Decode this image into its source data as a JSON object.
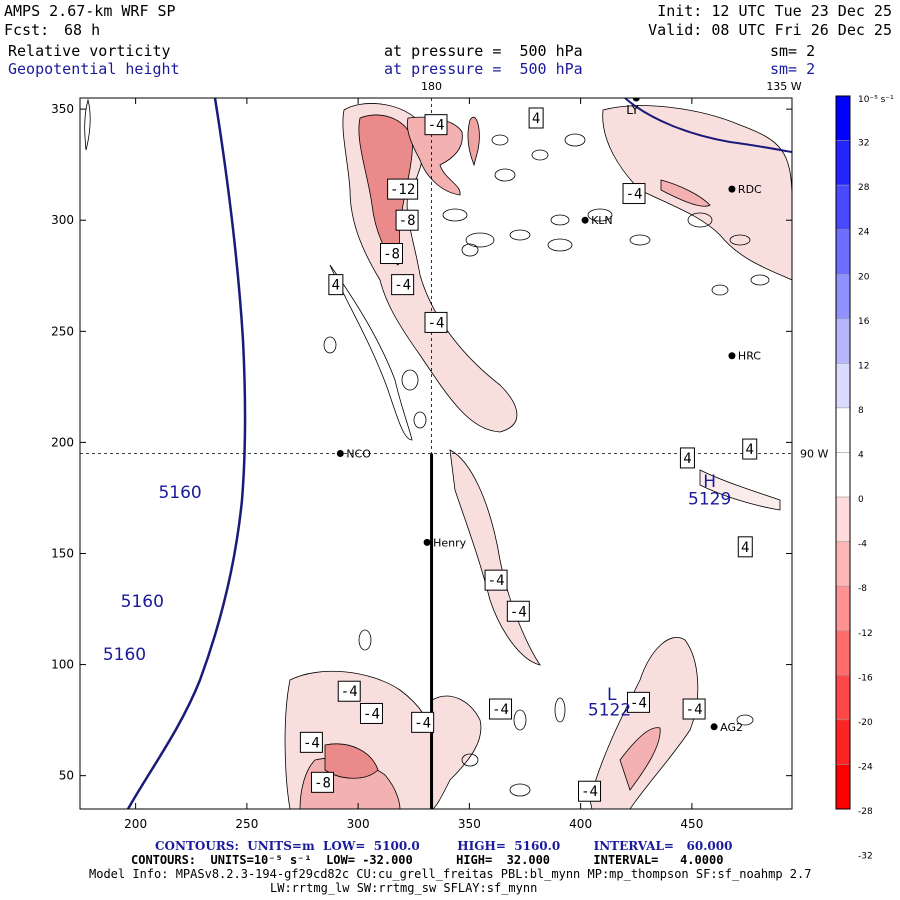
{
  "header": {
    "model": "AMPS 2.67-km WRF SP",
    "fcst_label": "Fcst:",
    "fcst_value": "68 h",
    "init": "Init: 12 UTC Tue 23 Dec 25",
    "valid": "Valid: 08 UTC Fri 26 Dec 25",
    "field1": "Relative vorticity",
    "field1_level": "at pressure =  500 hPa",
    "field1_smooth": "sm= 2",
    "field2": "Geopotential height",
    "field2_level": "at pressure =  500 hPa",
    "field2_smooth": "sm= 2",
    "lon_labels": [
      "180",
      "135 W",
      "90 W"
    ]
  },
  "colorbar": {
    "units": "10⁻⁵ s⁻¹",
    "ticks": [
      "32",
      "28",
      "24",
      "20",
      "16",
      "12",
      "8",
      "4",
      "0",
      "-4",
      "-8",
      "-12",
      "-16",
      "-20",
      "-24",
      "-28",
      "-32"
    ],
    "positive_color": "#0000ff",
    "negative_color": "#ff0000"
  },
  "chart_data": {
    "type": "contour",
    "xlim": [
      175,
      495
    ],
    "ylim": [
      35,
      355
    ],
    "x_ticks": [
      200,
      250,
      300,
      350,
      400,
      450
    ],
    "y_ticks": [
      50,
      100,
      150,
      200,
      250,
      300,
      350
    ],
    "height_contour_labels": [
      {
        "text": "5160",
        "x": 220,
        "y": 175
      },
      {
        "text": "5160",
        "x": 203,
        "y": 126
      },
      {
        "text": "5160",
        "x": 195,
        "y": 102
      },
      {
        "text": "5129",
        "x": 458,
        "y": 172
      },
      {
        "text": "5122",
        "x": 413,
        "y": 77
      }
    ],
    "pressure_centers": [
      {
        "label": "H",
        "x": 458,
        "y": 180
      },
      {
        "label": "L",
        "x": 414,
        "y": 84
      }
    ],
    "vorticity_labels": [
      {
        "text": "-4",
        "x": 335,
        "y": 343
      },
      {
        "text": "4",
        "x": 380,
        "y": 346
      },
      {
        "text": "-12",
        "x": 320,
        "y": 314
      },
      {
        "text": "-8",
        "x": 322,
        "y": 300
      },
      {
        "text": "-8",
        "x": 315,
        "y": 285
      },
      {
        "text": "4",
        "x": 290,
        "y": 271
      },
      {
        "text": "-4",
        "x": 320,
        "y": 271
      },
      {
        "text": "-4",
        "x": 335,
        "y": 254
      },
      {
        "text": "-4",
        "x": 424,
        "y": 312
      },
      {
        "text": "4",
        "x": 448,
        "y": 193
      },
      {
        "text": "4",
        "x": 476,
        "y": 197
      },
      {
        "text": "4",
        "x": 474,
        "y": 153
      },
      {
        "text": "-4",
        "x": 362,
        "y": 138
      },
      {
        "text": "-4",
        "x": 372,
        "y": 124
      },
      {
        "text": "-4",
        "x": 296,
        "y": 88
      },
      {
        "text": "-4",
        "x": 306,
        "y": 78
      },
      {
        "text": "-4",
        "x": 329,
        "y": 74
      },
      {
        "text": "-4",
        "x": 364,
        "y": 80
      },
      {
        "text": "-4",
        "x": 426,
        "y": 83
      },
      {
        "text": "-4",
        "x": 451,
        "y": 80
      },
      {
        "text": "-4",
        "x": 279,
        "y": 65
      },
      {
        "text": "-8",
        "x": 284,
        "y": 47
      },
      {
        "text": "-4",
        "x": 404,
        "y": 43
      }
    ],
    "stations": [
      {
        "name": "NCO",
        "x": 292,
        "y": 195
      },
      {
        "name": "Henry",
        "x": 331,
        "y": 155
      },
      {
        "name": "KLN",
        "x": 402,
        "y": 300
      },
      {
        "name": "RDC",
        "x": 468,
        "y": 314
      },
      {
        "name": "HRC",
        "x": 468,
        "y": 239
      },
      {
        "name": "AG2",
        "x": 460,
        "y": 72
      },
      {
        "name": "LY",
        "x": 425,
        "y": 355
      }
    ],
    "crosshair": {
      "x": 333,
      "y": 195
    },
    "section_line": {
      "x": 333,
      "y_from": 195,
      "y_to": 35
    }
  },
  "footer": {
    "line1": "CONTOURS:  UNITS=m  LOW=  5100.0         HIGH=  5160.0        INTERVAL=   60.000",
    "line2": "CONTOURS:  UNITS=10⁻⁵ s⁻¹  LOW= -32.000      HIGH=  32.000      INTERVAL=   4.0000",
    "line3": "Model Info: MPASv8.2.3-194-gf29cd82c CU:cu_grell_freitas PBL:bl_mynn MP:mp_thompson SF:sf_noahmp 2.7",
    "line4": "LW:rrtmg_lw SW:rrtmg_sw SFLAY:sf_mynn"
  }
}
